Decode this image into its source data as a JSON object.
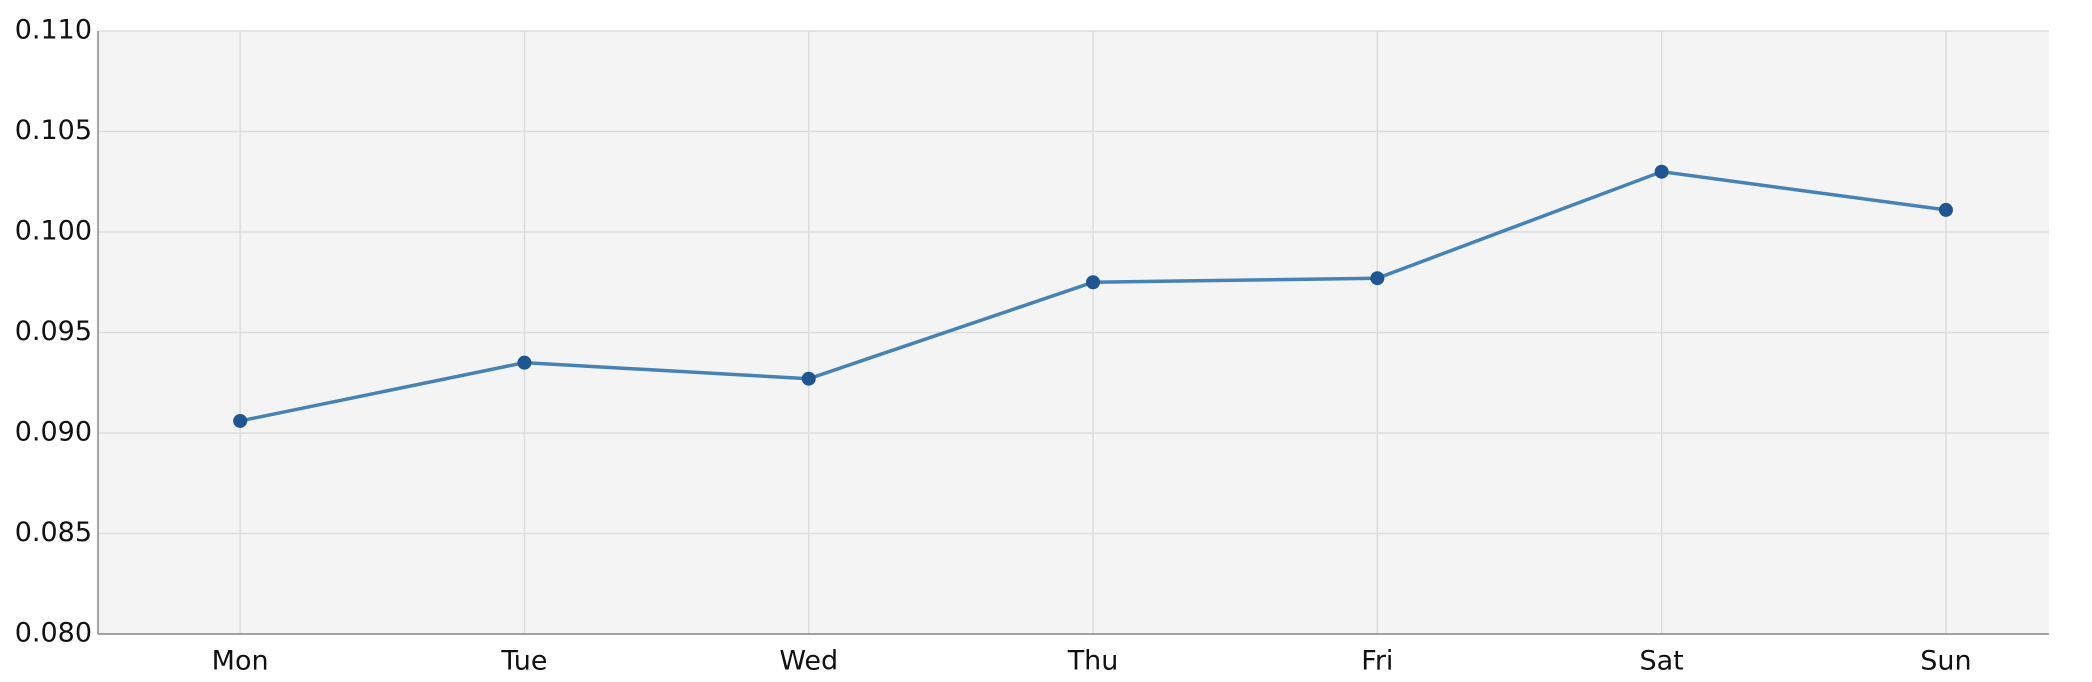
{
  "chart_data": {
    "type": "line",
    "categories": [
      "Mon",
      "Tue",
      "Wed",
      "Thu",
      "Fri",
      "Sat",
      "Sun"
    ],
    "values": [
      0.0906,
      0.0935,
      0.0927,
      0.0975,
      0.0977,
      0.103,
      0.1011
    ],
    "color": "#4682b4",
    "marker_color": "#1f5591",
    "ylim": [
      0.08,
      0.11
    ],
    "yticks": [
      {
        "value": 0.08,
        "label": "0.080"
      },
      0.085,
      {
        "value": 0.09,
        "label": "0.090"
      },
      0.095,
      {
        "value": 0.1,
        "label": "0.100"
      },
      0.105,
      {
        "value": 0.11,
        "label": "0.110"
      }
    ],
    "grid": true
  }
}
